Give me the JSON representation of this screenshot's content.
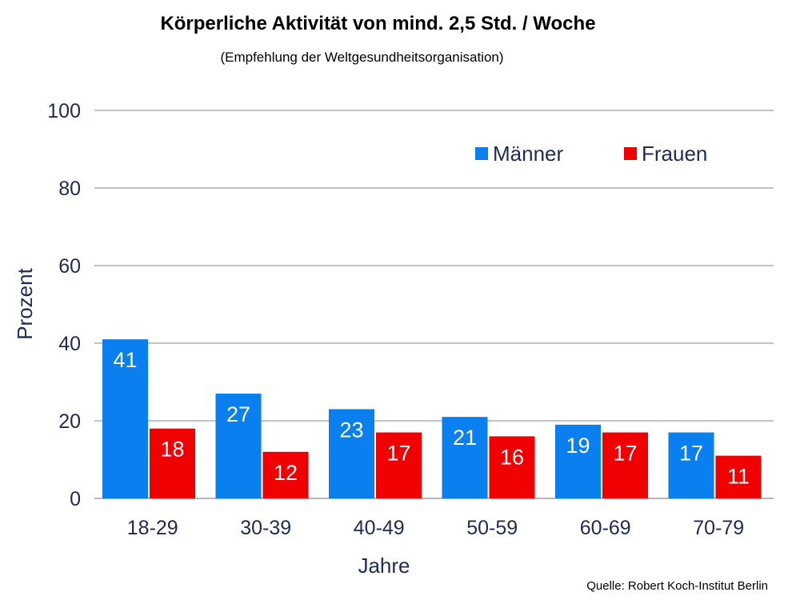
{
  "title": "Körperliche Aktivität von mind. 2,5 Std. / Woche",
  "subtitle": "(Empfehlung der Weltgesundheitsorganisation)",
  "source": "Quelle: Robert Koch-Institut Berlin",
  "chart_data": {
    "type": "bar",
    "categories": [
      "18-29",
      "30-39",
      "40-49",
      "50-59",
      "60-69",
      "70-79"
    ],
    "series": [
      {
        "name": "Männer",
        "color": "#0a7ff0",
        "values": [
          41,
          27,
          23,
          21,
          19,
          17
        ]
      },
      {
        "name": "Frauen",
        "color": "#f00000",
        "values": [
          18,
          12,
          17,
          16,
          17,
          11
        ]
      }
    ],
    "xlabel": "Jahre",
    "ylabel": "Prozent",
    "ylim": [
      0,
      100
    ],
    "yticks": [
      0,
      20,
      40,
      60,
      80,
      100
    ],
    "grid": true,
    "legend": "top-right"
  }
}
